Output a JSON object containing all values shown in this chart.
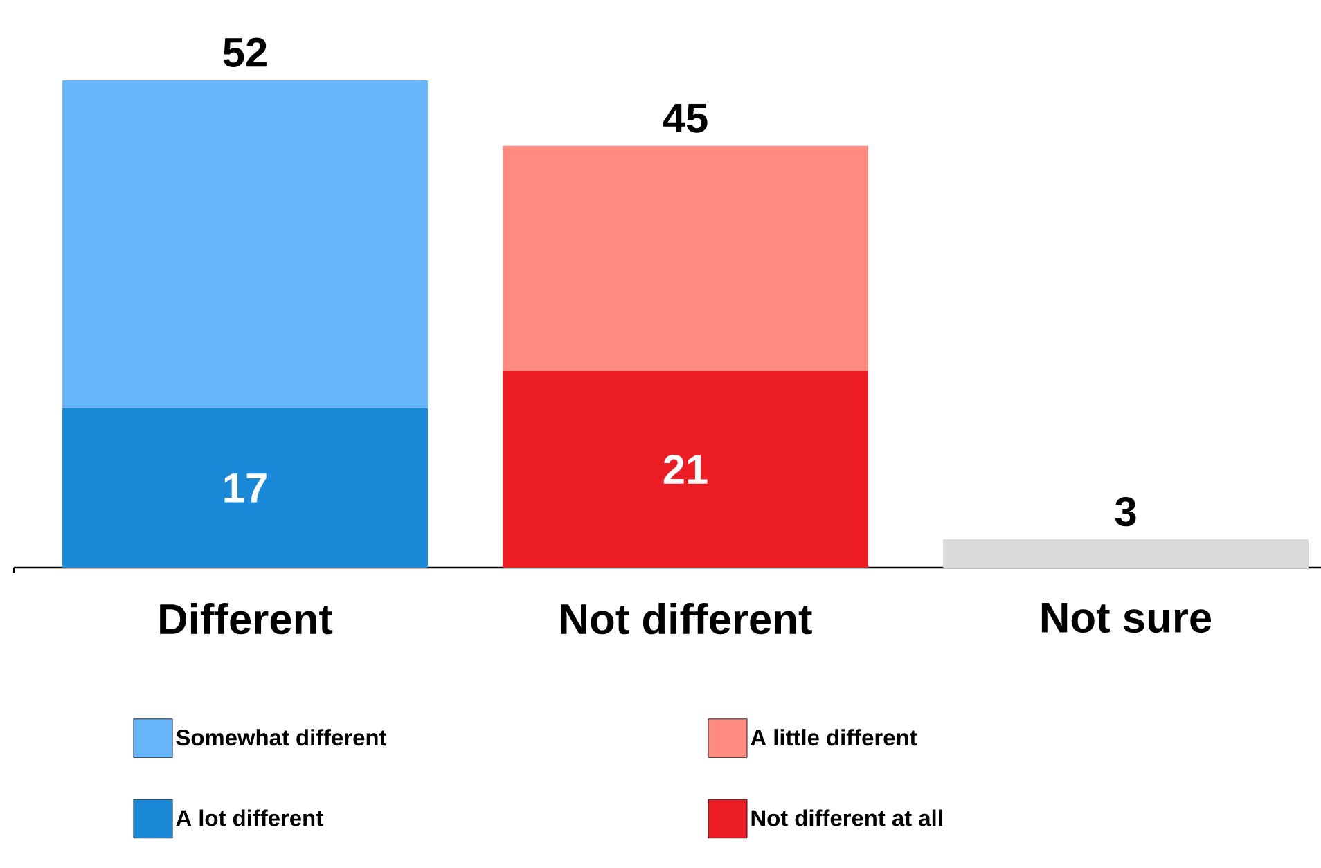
{
  "chart_data": {
    "type": "bar",
    "stacked": true,
    "categories": [
      "Different",
      "Not different",
      "Not sure"
    ],
    "series": [
      {
        "name": "A lot different",
        "color": "#1a8ad8",
        "values": [
          17,
          null,
          null
        ],
        "value_labels": [
          "17",
          null,
          null
        ]
      },
      {
        "name": "Somewhat different",
        "color": "#68b6fc",
        "values": [
          35,
          null,
          null
        ]
      },
      {
        "name": "Not different at all",
        "color": "#ec1c24",
        "values": [
          null,
          21,
          null
        ],
        "value_labels": [
          null,
          "21",
          null
        ]
      },
      {
        "name": "A little different",
        "color": "#ff8a82",
        "values": [
          null,
          24,
          null
        ]
      },
      {
        "color": "#d9d9d9",
        "values": [
          null,
          null,
          3
        ]
      }
    ],
    "totals": [
      "52",
      "45",
      "3"
    ],
    "legend": "bottom"
  }
}
